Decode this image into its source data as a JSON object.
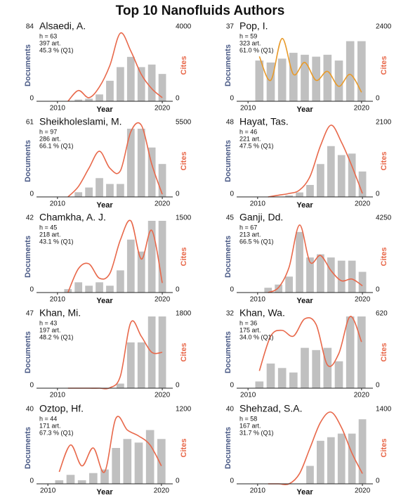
{
  "title": "Top 10 Nanofluids Authors",
  "chart_data": [
    {
      "type": "bar",
      "title": "Alsaedi, A.",
      "annotations": [
        "h = 63",
        "397 art.",
        "45.3 % (Q1)"
      ],
      "ylabel": "Documents",
      "y2label": "Cites",
      "xlabel": "Year",
      "x": [
        2011,
        2012,
        2013,
        2014,
        2015,
        2016,
        2017,
        2018,
        2019,
        2020
      ],
      "xlim": [
        2008,
        2021
      ],
      "xticks": [
        2010,
        2020
      ],
      "ylim": [
        0,
        84
      ],
      "yticks": [
        0,
        84
      ],
      "y2lim": [
        0,
        4000
      ],
      "y2ticks": [
        0,
        4000
      ],
      "series": [
        {
          "color": "#c0c0c0",
          "values": [
            0,
            2,
            3,
            8,
            24,
            40,
            52,
            40,
            43,
            32
          ]
        },
        {
          "type": "line",
          "axis": "y2",
          "color": "#e8684a",
          "values": [
            0,
            600,
            200,
            800,
            2000,
            3800,
            2800,
            1500,
            700,
            200
          ]
        }
      ]
    },
    {
      "type": "bar",
      "title": "Pop, I.",
      "annotations": [
        "h = 59",
        "323 art.",
        "61.0 % (Q1)"
      ],
      "ylabel": "Documents",
      "y2label": "Cites",
      "xlabel": "Year",
      "x": [
        2011,
        2012,
        2013,
        2014,
        2015,
        2016,
        2017,
        2018,
        2019,
        2020
      ],
      "xlim": [
        2009,
        2021
      ],
      "xticks": [
        2010,
        2020
      ],
      "ylim": [
        0,
        37
      ],
      "yticks": [
        0,
        37
      ],
      "y2lim": [
        0,
        2400
      ],
      "y2ticks": [
        0,
        2400
      ],
      "series": [
        {
          "color": "#c0c0c0",
          "values": [
            21,
            20,
            22,
            25,
            24,
            23,
            24,
            21,
            31,
            31
          ]
        },
        {
          "type": "line",
          "axis": "y2",
          "color": "#e89a2a",
          "values": [
            1500,
            700,
            2100,
            900,
            1300,
            700,
            1000,
            500,
            900,
            300
          ]
        }
      ]
    },
    {
      "type": "bar",
      "title": "Sheikholeslami, M.",
      "annotations": [
        "h = 97",
        "286 art.",
        "66.1 % (Q1)"
      ],
      "ylabel": "Documents",
      "y2label": "Cites",
      "xlabel": "Year",
      "x": [
        2011,
        2012,
        2013,
        2014,
        2015,
        2016,
        2017,
        2018,
        2019,
        2020
      ],
      "xlim": [
        2008,
        2021
      ],
      "xticks": [
        2010,
        2020
      ],
      "ylim": [
        0,
        61
      ],
      "yticks": [
        0,
        61
      ],
      "y2lim": [
        0,
        5500
      ],
      "y2ticks": [
        0,
        5500
      ],
      "series": [
        {
          "color": "#c0c0c0",
          "values": [
            0,
            4,
            8,
            16,
            11,
            11,
            58,
            58,
            42,
            28
          ]
        },
        {
          "type": "line",
          "axis": "y2",
          "color": "#e8684a",
          "values": [
            0,
            800,
            2200,
            3500,
            2200,
            2000,
            5000,
            5500,
            2500,
            200
          ]
        }
      ]
    },
    {
      "type": "bar",
      "title": "Hayat, Tas.",
      "annotations": [
        "h = 46",
        "221 art.",
        "47.5 % (Q1)"
      ],
      "ylabel": "Documents",
      "y2label": "Cites",
      "xlabel": "Year",
      "x": [
        2011,
        2012,
        2013,
        2014,
        2015,
        2016,
        2017,
        2018,
        2019,
        2020
      ],
      "xlim": [
        2008,
        2021
      ],
      "xticks": [
        2010,
        2020
      ],
      "ylim": [
        0,
        48
      ],
      "yticks": [
        0,
        48
      ],
      "y2lim": [
        0,
        2100
      ],
      "y2ticks": [
        0,
        2100
      ],
      "series": [
        {
          "color": "#c0c0c0",
          "values": [
            0,
            0,
            1,
            3,
            8,
            22,
            34,
            28,
            29,
            17
          ]
        },
        {
          "type": "line",
          "axis": "y2",
          "color": "#e8684a",
          "values": [
            0,
            50,
            100,
            200,
            600,
            1500,
            2100,
            1600,
            900,
            100
          ]
        }
      ]
    },
    {
      "type": "bar",
      "title": "Chamkha, A. J.",
      "annotations": [
        "h = 45",
        "218 art.",
        "43.1 % (Q1)"
      ],
      "ylabel": "Documents",
      "y2label": "Cites",
      "xlabel": "Year",
      "x": [
        2011,
        2012,
        2013,
        2014,
        2015,
        2016,
        2017,
        2018,
        2019,
        2020
      ],
      "xlim": [
        2008,
        2021
      ],
      "xticks": [
        2010,
        2020
      ],
      "ylim": [
        0,
        42
      ],
      "yticks": [
        0,
        42
      ],
      "y2lim": [
        0,
        1500
      ],
      "y2ticks": [
        0,
        1500
      ],
      "series": [
        {
          "color": "#c0c0c0",
          "values": [
            2,
            6,
            4,
            6,
            4,
            13,
            31,
            24,
            42,
            42
          ]
        },
        {
          "type": "line",
          "axis": "y2",
          "color": "#e8684a",
          "values": [
            0,
            500,
            600,
            300,
            400,
            1100,
            1500,
            700,
            1300,
            200
          ]
        }
      ]
    },
    {
      "type": "bar",
      "title": "Ganji, Dd.",
      "annotations": [
        "h = 67",
        "213 art.",
        "66.5 % (Q1)"
      ],
      "ylabel": "Documents",
      "y2label": "Cites",
      "xlabel": "Year",
      "x": [
        2011,
        2012,
        2013,
        2014,
        2015,
        2016,
        2017,
        2018,
        2019,
        2020
      ],
      "xlim": [
        2008,
        2021
      ],
      "xticks": [
        2010,
        2020
      ],
      "ylim": [
        0,
        45
      ],
      "yticks": [
        0,
        45
      ],
      "y2lim": [
        0,
        4250
      ],
      "y2ticks": [
        0,
        4250
      ],
      "series": [
        {
          "color": "#c0c0c0",
          "values": [
            3,
            5,
            10,
            38,
            22,
            24,
            22,
            20,
            20,
            13
          ]
        },
        {
          "type": "line",
          "axis": "y2",
          "color": "#e8684a",
          "values": [
            0,
            300,
            1500,
            4000,
            1800,
            2200,
            1300,
            700,
            800,
            400
          ]
        }
      ]
    },
    {
      "type": "bar",
      "title": "Khan, Mi.",
      "annotations": [
        "h = 43",
        "197 art.",
        "48.2 % (Q1)"
      ],
      "ylabel": "Documents",
      "y2label": "Cites",
      "x": [
        2011,
        2012,
        2013,
        2014,
        2015,
        2016,
        2017,
        2018,
        2019,
        2020
      ],
      "xlim": [
        2008,
        2021
      ],
      "xticks": [
        2010,
        2020
      ],
      "ylim": [
        0,
        47
      ],
      "yticks": [
        0,
        47
      ],
      "y2lim": [
        0,
        1800
      ],
      "y2ticks": [
        0,
        1800
      ],
      "series": [
        {
          "color": "#c0c0c0",
          "values": [
            0,
            0,
            0,
            0,
            0,
            3,
            30,
            30,
            47,
            47
          ]
        },
        {
          "type": "line",
          "axis": "y2",
          "color": "#e8684a",
          "values": [
            0,
            0,
            0,
            0,
            10,
            300,
            1650,
            1300,
            900,
            900
          ]
        }
      ]
    },
    {
      "type": "bar",
      "title": "Khan, Wa.",
      "annotations": [
        "h = 36",
        "175 art.",
        "34.0 % (Q1)"
      ],
      "ylabel": "Documents",
      "y2label": "Cites",
      "x": [
        2011,
        2012,
        2013,
        2014,
        2015,
        2016,
        2017,
        2018,
        2019,
        2020
      ],
      "xlim": [
        2009,
        2021
      ],
      "xticks": [
        2010,
        2020
      ],
      "ylim": [
        0,
        32
      ],
      "yticks": [
        0,
        32
      ],
      "y2lim": [
        0,
        620
      ],
      "y2ticks": [
        0,
        620
      ],
      "series": [
        {
          "color": "#c0c0c0",
          "values": [
            3,
            11,
            9,
            7,
            18,
            17,
            18,
            12,
            32,
            32
          ]
        },
        {
          "type": "line",
          "axis": "y2",
          "color": "#e8684a",
          "values": [
            150,
            450,
            500,
            450,
            600,
            550,
            200,
            300,
            620,
            400
          ]
        }
      ]
    },
    {
      "type": "bar",
      "title": "Oztop, Hf.",
      "annotations": [
        "h = 44",
        "171 art.",
        "67.3 % (Q1)"
      ],
      "ylabel": "Documents",
      "y2label": "Cites",
      "xlabel": "Year",
      "x": [
        2011,
        2012,
        2013,
        2014,
        2015,
        2016,
        2017,
        2018,
        2019,
        2020
      ],
      "xlim": [
        2009,
        2021
      ],
      "xticks": [
        2010,
        2020
      ],
      "ylim": [
        0,
        40
      ],
      "yticks": [
        0,
        40
      ],
      "y2lim": [
        0,
        1200
      ],
      "y2ticks": [
        0,
        1200
      ],
      "series": [
        {
          "color": "#c0c0c0",
          "values": [
            2,
            5,
            2,
            6,
            8,
            20,
            25,
            23,
            30,
            25
          ]
        },
        {
          "type": "line",
          "axis": "y2",
          "color": "#e8684a",
          "values": [
            200,
            650,
            300,
            600,
            200,
            1100,
            900,
            800,
            650,
            300
          ]
        }
      ]
    },
    {
      "type": "bar",
      "title": "Shehzad, S.A.",
      "annotations": [
        "h = 58",
        "167 art.",
        "31.7 % (Q1)"
      ],
      "ylabel": "Documents",
      "y2label": "Cites",
      "xlabel": "Year",
      "x": [
        2011,
        2012,
        2013,
        2014,
        2015,
        2016,
        2017,
        2018,
        2019,
        2020
      ],
      "xlim": [
        2008,
        2021
      ],
      "xticks": [
        2010,
        2020
      ],
      "ylim": [
        0,
        40
      ],
      "yticks": [
        0,
        40
      ],
      "y2lim": [
        0,
        1400
      ],
      "y2ticks": [
        0,
        1400
      ],
      "series": [
        {
          "color": "#c0c0c0",
          "values": [
            0,
            0,
            0,
            0,
            10,
            24,
            26,
            28,
            28,
            36
          ]
        },
        {
          "type": "line",
          "axis": "y2",
          "color": "#e8684a",
          "values": [
            0,
            0,
            0,
            200,
            700,
            1200,
            1400,
            1100,
            600,
            200
          ]
        }
      ]
    }
  ]
}
